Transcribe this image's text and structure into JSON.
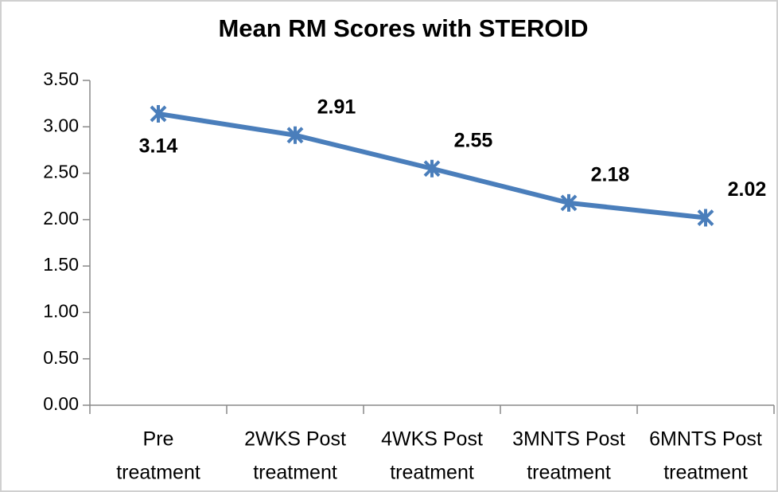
{
  "chart_data": {
    "type": "line",
    "title": "Mean RM Scores with STEROID",
    "categories": [
      [
        "Pre",
        "treatment"
      ],
      [
        "2WKS Post",
        "treatment"
      ],
      [
        "4WKS Post",
        "treatment"
      ],
      [
        "3MNTS Post",
        "treatment"
      ],
      [
        "6MNTS Post",
        "treatment"
      ]
    ],
    "values": [
      3.14,
      2.91,
      2.55,
      2.18,
      2.02
    ],
    "color": "#4a7ebb",
    "ylim": [
      0,
      3.5
    ],
    "yticks": [
      {
        "value": 0,
        "label": "0.00"
      },
      {
        "value": 0.5,
        "label": "0.50"
      },
      {
        "value": 1,
        "label": "1.00"
      },
      {
        "value": 1.5,
        "label": "1.50"
      },
      {
        "value": 2,
        "label": "2.00"
      },
      {
        "value": 2.5,
        "label": "2.50"
      },
      {
        "value": 3,
        "label": "3.00"
      },
      {
        "value": 3.5,
        "label": "3.50"
      }
    ],
    "grid": false
  }
}
